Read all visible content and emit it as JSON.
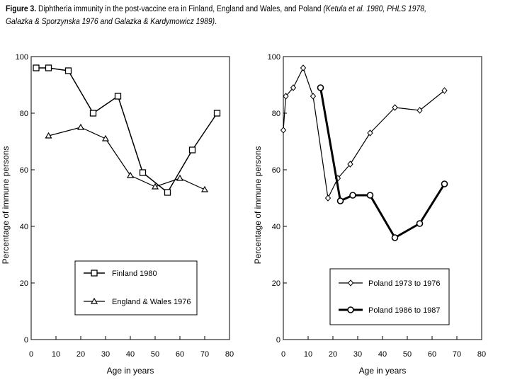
{
  "caption": {
    "figure_label": "Figure 3.",
    "text": " Diphtheria immunity in the post-vaccine era in Finland, England and Wales, and Poland ",
    "refs": "(Ketula et al. 1980, PHLS 1978, Galazka & Sporzynska 1976 and Galazka & Kardymowicz 1989)",
    "end": "."
  },
  "chart_data": [
    {
      "type": "line",
      "title": "",
      "xlabel": "Age in years",
      "ylabel": "Percentage of immune persons",
      "xlim": [
        0,
        80
      ],
      "ylim": [
        0,
        100
      ],
      "xticks": [
        0,
        10,
        20,
        30,
        40,
        50,
        60,
        70,
        80
      ],
      "yticks": [
        0,
        20,
        40,
        60,
        80,
        100
      ],
      "legend_position": "bottom-right",
      "series": [
        {
          "name": "Finland 1980",
          "marker": "square",
          "x": [
            2,
            7,
            15,
            25,
            35,
            45,
            55,
            65,
            75
          ],
          "y": [
            96,
            96,
            95,
            80,
            86,
            59,
            52,
            67,
            80
          ]
        },
        {
          "name": "England & Wales 1976",
          "marker": "triangle",
          "x": [
            7,
            20,
            30,
            40,
            50,
            60,
            70
          ],
          "y": [
            72,
            75,
            71,
            58,
            54,
            57,
            53
          ]
        }
      ]
    },
    {
      "type": "line",
      "title": "",
      "xlabel": "Age in years",
      "ylabel": "Percentage of immune persons",
      "xlim": [
        0,
        80
      ],
      "ylim": [
        0,
        100
      ],
      "xticks": [
        0,
        10,
        20,
        30,
        40,
        50,
        60,
        70,
        80
      ],
      "yticks": [
        0,
        20,
        40,
        60,
        80,
        100
      ],
      "legend_position": "bottom-right",
      "series": [
        {
          "name": "Poland 1973 to 1976",
          "marker": "diamond",
          "x": [
            0,
            1,
            4,
            8,
            12,
            18,
            22,
            27,
            35,
            45,
            55,
            65
          ],
          "y": [
            74,
            86,
            89,
            96,
            86,
            50,
            57,
            62,
            73,
            82,
            81,
            88
          ]
        },
        {
          "name": "Poland 1986 to 1987",
          "marker": "circle",
          "x": [
            15,
            23,
            28,
            35,
            45,
            55,
            65
          ],
          "y": [
            89,
            49,
            51,
            51,
            36,
            41,
            55
          ]
        }
      ]
    }
  ]
}
